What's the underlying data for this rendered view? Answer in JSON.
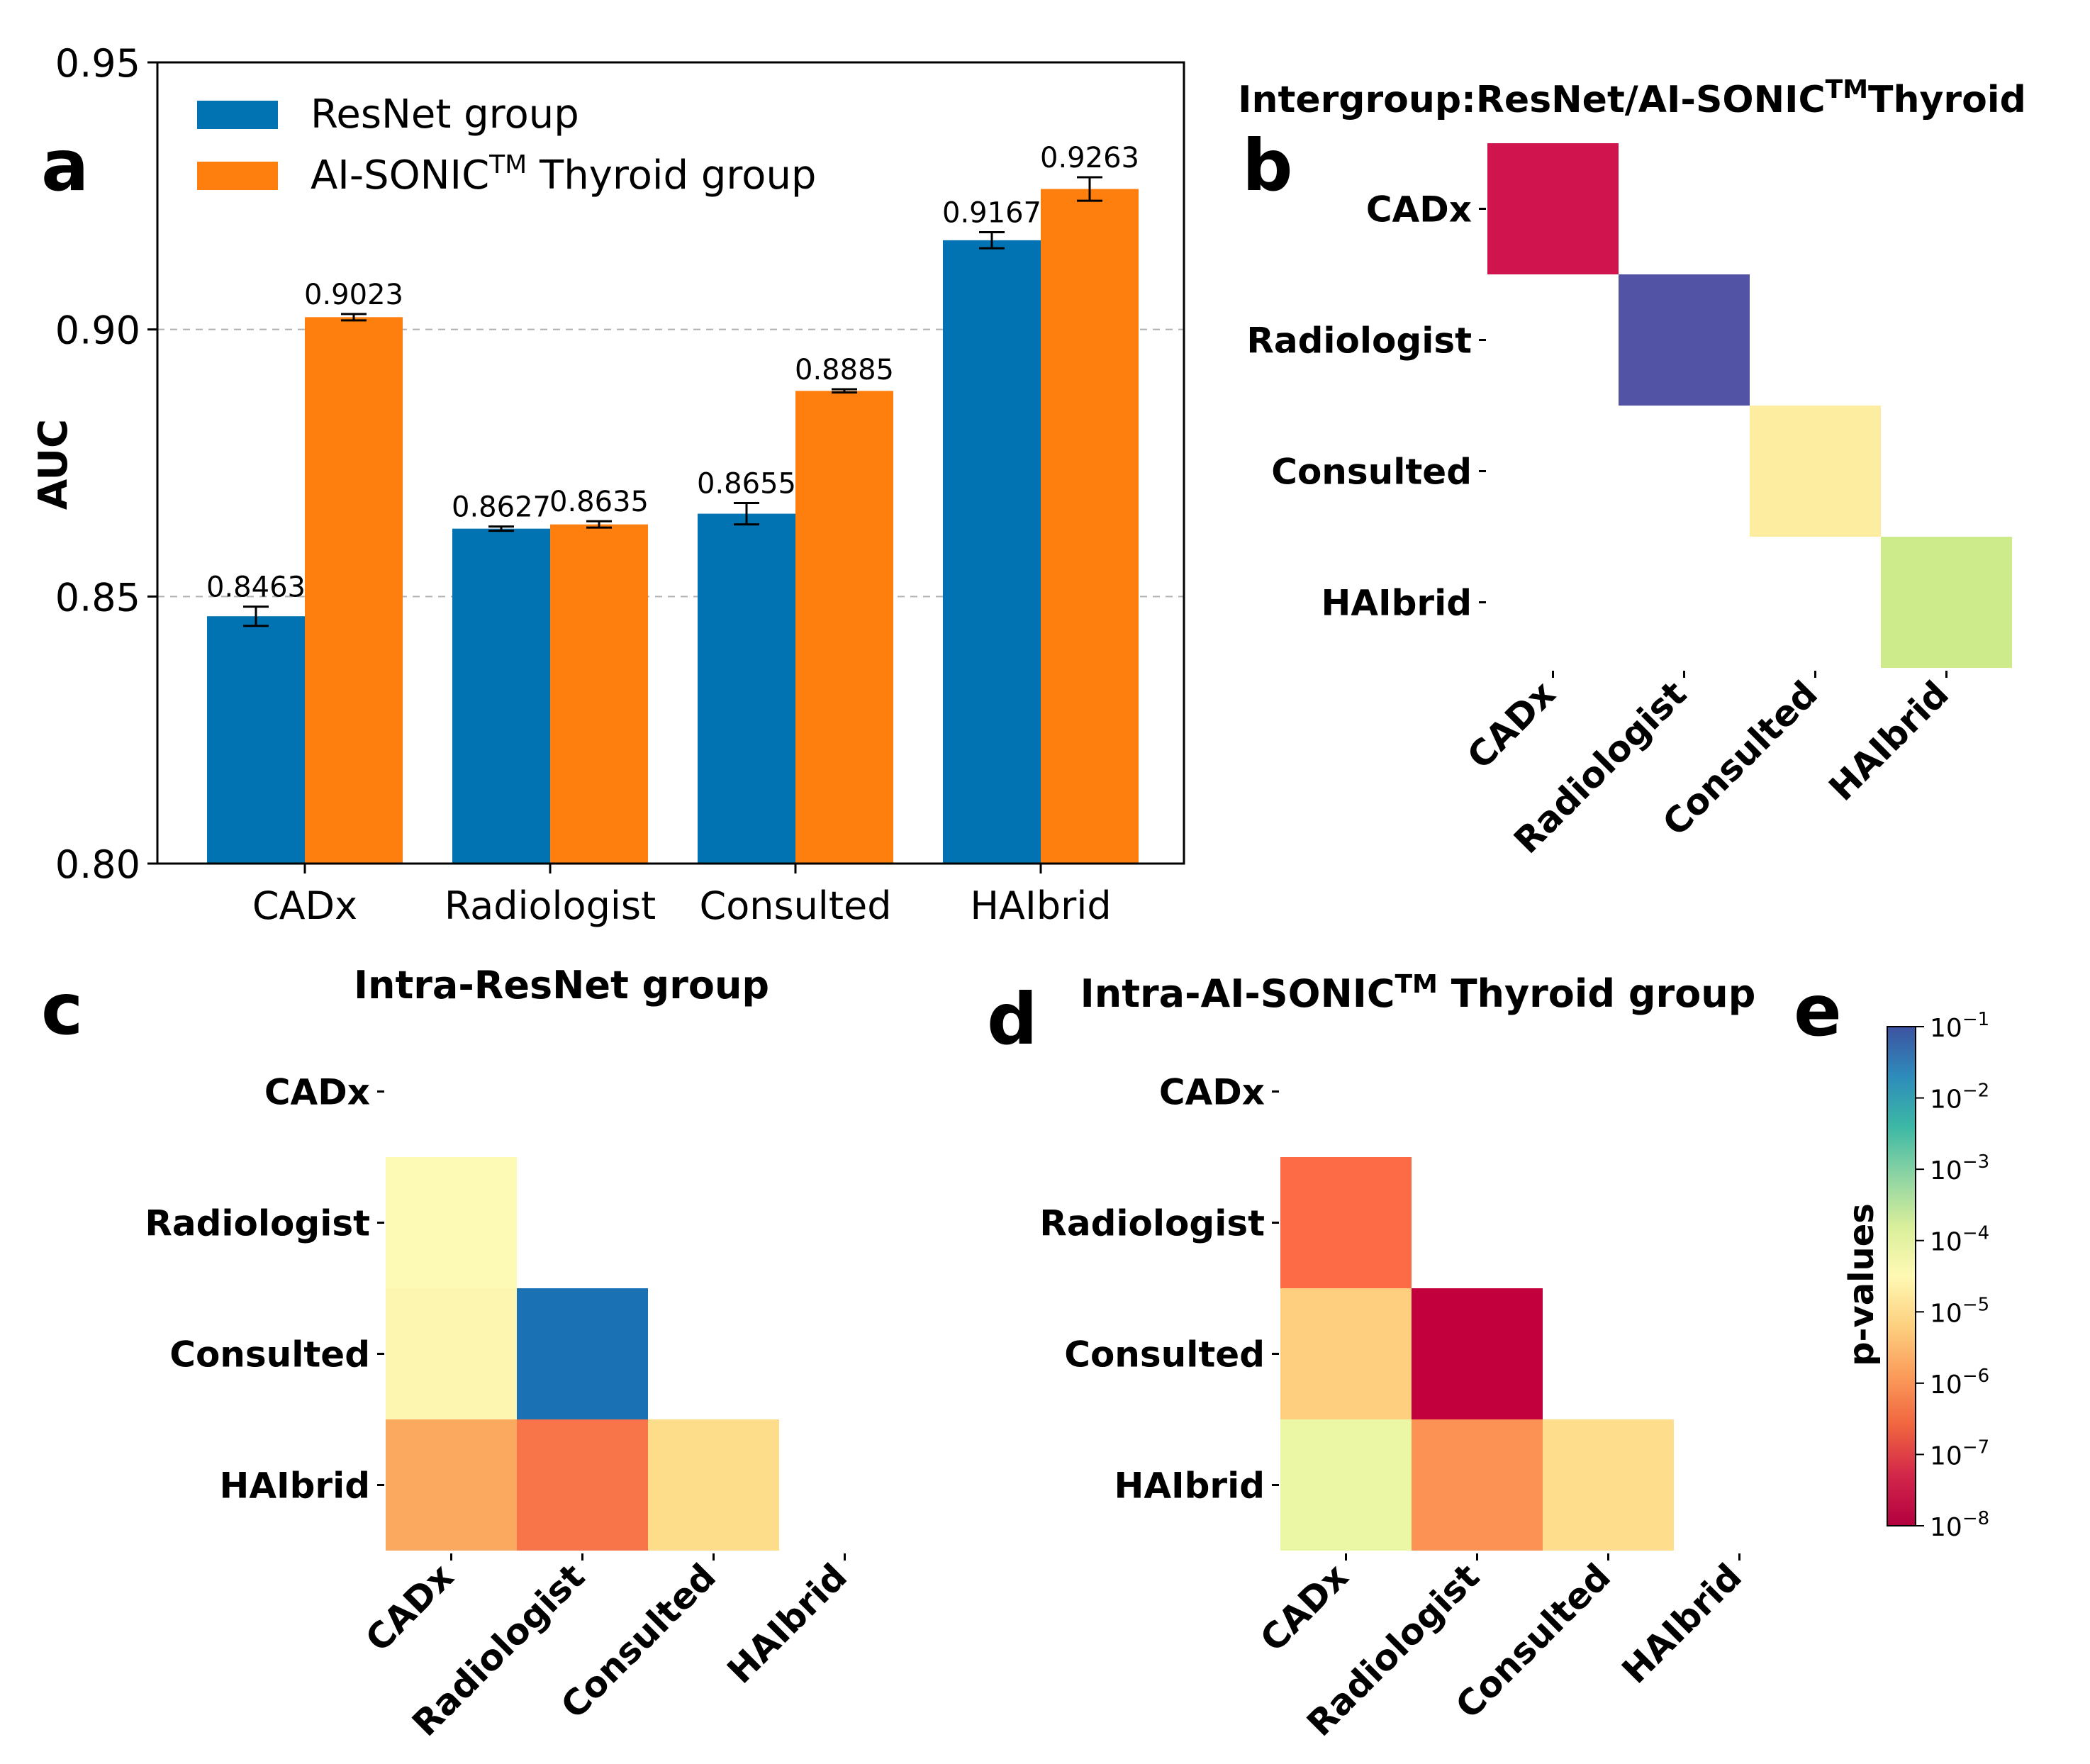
{
  "panels": {
    "a": "a",
    "b": "b",
    "c": "c",
    "d": "d",
    "e": "e"
  },
  "tm": "TM",
  "chart_data": [
    {
      "panel": "a",
      "type": "bar",
      "title": "",
      "xlabel": "",
      "ylabel": "AUC",
      "ylim": [
        0.8,
        0.95
      ],
      "yticks": [
        "0.80",
        "0.85",
        "0.90",
        "0.95"
      ],
      "ytick_values": [
        0.8,
        0.85,
        0.9,
        0.95
      ],
      "grid_lines": [
        0.85,
        0.9
      ],
      "categories": [
        "CADx",
        "Radiologist",
        "Consulted",
        "HAIbrid"
      ],
      "legend_position": "top-left",
      "series": [
        {
          "name": "ResNet group",
          "legend_label": "ResNet group",
          "color": "#0173b2",
          "values": [
            0.8463,
            0.8627,
            0.8655,
            0.9167
          ],
          "labels": [
            "0.8463",
            "0.8627",
            "0.8655",
            "0.9167"
          ],
          "errors": [
            0.0018,
            0.0004,
            0.002,
            0.0015
          ]
        },
        {
          "name": "AI-SONIC Thyroid group",
          "legend_label_pre": "AI-SONIC",
          "legend_label_post": " Thyroid group",
          "color": "#ff7f0e",
          "values": [
            0.9023,
            0.8635,
            0.8885,
            0.9263
          ],
          "labels": [
            "0.9023",
            "0.8635",
            "0.8885",
            "0.9263"
          ],
          "errors": [
            0.0006,
            0.0006,
            0.0003,
            0.0022
          ]
        }
      ]
    },
    {
      "panel": "b",
      "type": "heatmap",
      "title_pre": "Intergroup:ResNet/AI-SONIC",
      "title_post": "Thyroid",
      "labels": [
        "CADx",
        "Radiologist",
        "Consulted",
        "HAIbrid"
      ],
      "cells": [
        {
          "row": 0,
          "col": 0,
          "color": "#d0144d"
        },
        {
          "row": 1,
          "col": 1,
          "color": "#5353a6"
        },
        {
          "row": 2,
          "col": 2,
          "color": "#fdeda1"
        },
        {
          "row": 3,
          "col": 3,
          "color": "#cdeb8b"
        }
      ]
    },
    {
      "panel": "c",
      "type": "heatmap",
      "title": "Intra-ResNet group",
      "labels": [
        "CADx",
        "Radiologist",
        "Consulted",
        "HAIbrid"
      ],
      "cells": [
        {
          "row": 1,
          "col": 0,
          "color": "#fdfab5"
        },
        {
          "row": 2,
          "col": 0,
          "color": "#fdf6b0"
        },
        {
          "row": 2,
          "col": 1,
          "color": "#1a71b3"
        },
        {
          "row": 3,
          "col": 0,
          "color": "#fba95e"
        },
        {
          "row": 3,
          "col": 1,
          "color": "#f8754a"
        },
        {
          "row": 3,
          "col": 2,
          "color": "#fedd8a"
        }
      ]
    },
    {
      "panel": "d",
      "type": "heatmap",
      "title_pre": "Intra-AI-SONIC",
      "title_post": " Thyroid group",
      "labels": [
        "CADx",
        "Radiologist",
        "Consulted",
        "HAIbrid"
      ],
      "cells": [
        {
          "row": 1,
          "col": 0,
          "color": "#fc6b45"
        },
        {
          "row": 2,
          "col": 0,
          "color": "#fdcf7f"
        },
        {
          "row": 2,
          "col": 1,
          "color": "#c1003d"
        },
        {
          "row": 3,
          "col": 0,
          "color": "#ecf7a6"
        },
        {
          "row": 3,
          "col": 1,
          "color": "#fc9253"
        },
        {
          "row": 3,
          "col": 2,
          "color": "#fede8c"
        }
      ]
    },
    {
      "panel": "e",
      "type": "colorbar",
      "label": "p-values",
      "tick_base": "10",
      "tick_exponents": [
        "−1",
        "−2",
        "−3",
        "−4",
        "−5",
        "−6",
        "−7",
        "−8"
      ],
      "stops": [
        "#3d52a1",
        "#2e8cbb",
        "#3cb8a5",
        "#8ed4a3",
        "#d9ef9b",
        "#fff9b4",
        "#fdd07f",
        "#fb9b5a",
        "#f0643f",
        "#d2264a",
        "#b3003f"
      ]
    }
  ]
}
